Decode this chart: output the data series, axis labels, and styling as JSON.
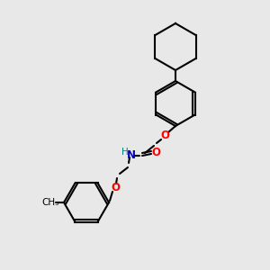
{
  "background_color": "#e8e8e8",
  "bond_color": "#000000",
  "bond_width": 1.5,
  "atom_colors": {
    "O": "#ff0000",
    "N": "#0000bb",
    "H": "#008080",
    "C": "#000000"
  },
  "font_size_atom": 8.5,
  "fig_width": 3.0,
  "fig_height": 3.0,
  "dpi": 100
}
